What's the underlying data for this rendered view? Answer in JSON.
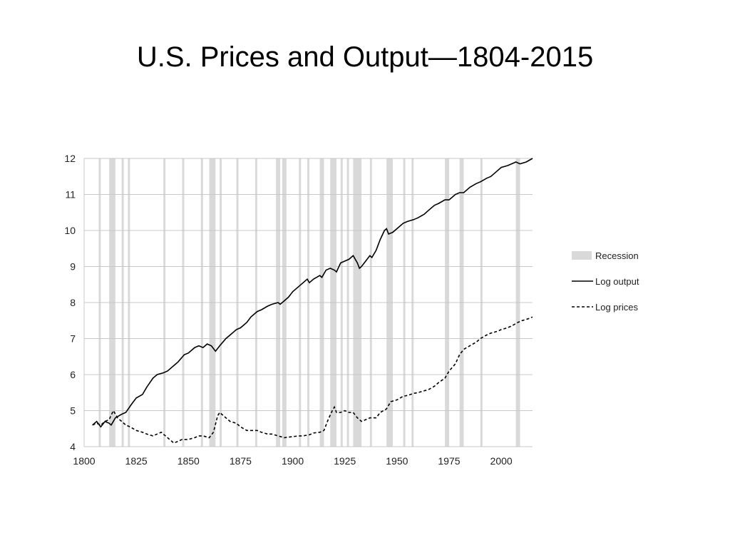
{
  "chart_data": {
    "type": "line",
    "title": "U.S. Prices and Output—1804-2015",
    "xlabel": "",
    "ylabel": "",
    "xlim": [
      1800,
      2015
    ],
    "ylim": [
      4,
      12
    ],
    "x_ticks": [
      1800,
      1825,
      1850,
      1875,
      1900,
      1925,
      1950,
      1975,
      2000
    ],
    "y_ticks": [
      4,
      5,
      6,
      7,
      8,
      9,
      10,
      11,
      12
    ],
    "grid": true,
    "legend_position": "right",
    "legend": [
      "Recession",
      "Log output",
      "Log prices"
    ],
    "colors": {
      "recession": "#d9d9d9",
      "output": "#000000",
      "prices": "#000000",
      "grid": "#c8c8c8"
    },
    "recessions": [
      [
        1807,
        1808
      ],
      [
        1812,
        1815
      ],
      [
        1818,
        1819
      ],
      [
        1821,
        1822
      ],
      [
        1838,
        1839
      ],
      [
        1847,
        1848
      ],
      [
        1856,
        1857
      ],
      [
        1860,
        1863
      ],
      [
        1865,
        1866
      ],
      [
        1873,
        1874
      ],
      [
        1882,
        1883
      ],
      [
        1892,
        1894
      ],
      [
        1895,
        1897
      ],
      [
        1903,
        1904
      ],
      [
        1907,
        1908
      ],
      [
        1913,
        1915
      ],
      [
        1918,
        1921
      ],
      [
        1923,
        1924
      ],
      [
        1926,
        1927
      ],
      [
        1929,
        1933
      ],
      [
        1937,
        1938
      ],
      [
        1945,
        1948
      ],
      [
        1953,
        1954
      ],
      [
        1957,
        1958
      ],
      [
        1973,
        1975
      ],
      [
        1980,
        1982
      ],
      [
        1990,
        1991
      ],
      [
        2007,
        2009
      ]
    ],
    "series": [
      {
        "name": "Log output",
        "style": "solid",
        "points": [
          [
            1804,
            4.6
          ],
          [
            1806,
            4.7
          ],
          [
            1808,
            4.55
          ],
          [
            1810,
            4.7
          ],
          [
            1812,
            4.65
          ],
          [
            1813,
            4.6
          ],
          [
            1815,
            4.8
          ],
          [
            1818,
            4.9
          ],
          [
            1820,
            4.95
          ],
          [
            1823,
            5.2
          ],
          [
            1825,
            5.35
          ],
          [
            1828,
            5.45
          ],
          [
            1830,
            5.65
          ],
          [
            1833,
            5.9
          ],
          [
            1835,
            6.0
          ],
          [
            1838,
            6.05
          ],
          [
            1840,
            6.1
          ],
          [
            1843,
            6.25
          ],
          [
            1845,
            6.35
          ],
          [
            1848,
            6.55
          ],
          [
            1850,
            6.6
          ],
          [
            1853,
            6.75
          ],
          [
            1855,
            6.8
          ],
          [
            1857,
            6.75
          ],
          [
            1859,
            6.85
          ],
          [
            1861,
            6.8
          ],
          [
            1863,
            6.65
          ],
          [
            1865,
            6.8
          ],
          [
            1868,
            7.0
          ],
          [
            1870,
            7.1
          ],
          [
            1873,
            7.25
          ],
          [
            1875,
            7.3
          ],
          [
            1878,
            7.45
          ],
          [
            1880,
            7.6
          ],
          [
            1883,
            7.75
          ],
          [
            1885,
            7.8
          ],
          [
            1888,
            7.9
          ],
          [
            1890,
            7.95
          ],
          [
            1893,
            8.0
          ],
          [
            1894,
            7.95
          ],
          [
            1896,
            8.05
          ],
          [
            1898,
            8.15
          ],
          [
            1900,
            8.3
          ],
          [
            1903,
            8.45
          ],
          [
            1905,
            8.55
          ],
          [
            1907,
            8.65
          ],
          [
            1908,
            8.55
          ],
          [
            1910,
            8.65
          ],
          [
            1913,
            8.75
          ],
          [
            1914,
            8.7
          ],
          [
            1916,
            8.9
          ],
          [
            1918,
            8.95
          ],
          [
            1920,
            8.9
          ],
          [
            1921,
            8.85
          ],
          [
            1923,
            9.1
          ],
          [
            1925,
            9.15
          ],
          [
            1927,
            9.2
          ],
          [
            1929,
            9.3
          ],
          [
            1931,
            9.1
          ],
          [
            1932,
            8.95
          ],
          [
            1933,
            9.0
          ],
          [
            1935,
            9.15
          ],
          [
            1937,
            9.3
          ],
          [
            1938,
            9.25
          ],
          [
            1940,
            9.45
          ],
          [
            1942,
            9.75
          ],
          [
            1944,
            10.0
          ],
          [
            1945,
            10.05
          ],
          [
            1946,
            9.9
          ],
          [
            1948,
            9.95
          ],
          [
            1950,
            10.05
          ],
          [
            1953,
            10.2
          ],
          [
            1955,
            10.25
          ],
          [
            1958,
            10.3
          ],
          [
            1960,
            10.35
          ],
          [
            1963,
            10.45
          ],
          [
            1965,
            10.55
          ],
          [
            1968,
            10.7
          ],
          [
            1970,
            10.75
          ],
          [
            1973,
            10.85
          ],
          [
            1975,
            10.85
          ],
          [
            1978,
            11.0
          ],
          [
            1980,
            11.05
          ],
          [
            1982,
            11.05
          ],
          [
            1985,
            11.2
          ],
          [
            1988,
            11.3
          ],
          [
            1990,
            11.35
          ],
          [
            1993,
            11.45
          ],
          [
            1995,
            11.5
          ],
          [
            1998,
            11.65
          ],
          [
            2000,
            11.75
          ],
          [
            2003,
            11.8
          ],
          [
            2005,
            11.85
          ],
          [
            2007,
            11.9
          ],
          [
            2009,
            11.85
          ],
          [
            2012,
            11.9
          ],
          [
            2015,
            12.0
          ]
        ]
      },
      {
        "name": "Log prices",
        "style": "dashed",
        "points": [
          [
            1804,
            4.6
          ],
          [
            1806,
            4.65
          ],
          [
            1808,
            4.6
          ],
          [
            1810,
            4.7
          ],
          [
            1812,
            4.75
          ],
          [
            1814,
            5.0
          ],
          [
            1816,
            4.8
          ],
          [
            1818,
            4.7
          ],
          [
            1820,
            4.6
          ],
          [
            1822,
            4.55
          ],
          [
            1825,
            4.45
          ],
          [
            1828,
            4.4
          ],
          [
            1830,
            4.35
          ],
          [
            1833,
            4.3
          ],
          [
            1835,
            4.35
          ],
          [
            1837,
            4.4
          ],
          [
            1840,
            4.25
          ],
          [
            1842,
            4.15
          ],
          [
            1843,
            4.1
          ],
          [
            1845,
            4.15
          ],
          [
            1847,
            4.2
          ],
          [
            1850,
            4.2
          ],
          [
            1853,
            4.25
          ],
          [
            1855,
            4.3
          ],
          [
            1857,
            4.3
          ],
          [
            1860,
            4.25
          ],
          [
            1862,
            4.4
          ],
          [
            1864,
            4.85
          ],
          [
            1865,
            4.95
          ],
          [
            1867,
            4.85
          ],
          [
            1870,
            4.7
          ],
          [
            1873,
            4.65
          ],
          [
            1875,
            4.55
          ],
          [
            1878,
            4.45
          ],
          [
            1880,
            4.45
          ],
          [
            1883,
            4.45
          ],
          [
            1885,
            4.4
          ],
          [
            1888,
            4.35
          ],
          [
            1890,
            4.35
          ],
          [
            1893,
            4.3
          ],
          [
            1896,
            4.25
          ],
          [
            1900,
            4.28
          ],
          [
            1903,
            4.3
          ],
          [
            1905,
            4.3
          ],
          [
            1908,
            4.33
          ],
          [
            1910,
            4.38
          ],
          [
            1913,
            4.4
          ],
          [
            1915,
            4.45
          ],
          [
            1917,
            4.75
          ],
          [
            1919,
            5.0
          ],
          [
            1920,
            5.1
          ],
          [
            1921,
            4.95
          ],
          [
            1923,
            4.95
          ],
          [
            1925,
            5.0
          ],
          [
            1927,
            4.95
          ],
          [
            1929,
            4.95
          ],
          [
            1931,
            4.8
          ],
          [
            1933,
            4.7
          ],
          [
            1935,
            4.75
          ],
          [
            1937,
            4.8
          ],
          [
            1940,
            4.8
          ],
          [
            1942,
            4.95
          ],
          [
            1945,
            5.05
          ],
          [
            1947,
            5.25
          ],
          [
            1950,
            5.3
          ],
          [
            1953,
            5.4
          ],
          [
            1955,
            5.42
          ],
          [
            1958,
            5.48
          ],
          [
            1960,
            5.5
          ],
          [
            1963,
            5.55
          ],
          [
            1965,
            5.58
          ],
          [
            1968,
            5.68
          ],
          [
            1970,
            5.78
          ],
          [
            1973,
            5.9
          ],
          [
            1975,
            6.1
          ],
          [
            1978,
            6.3
          ],
          [
            1980,
            6.55
          ],
          [
            1982,
            6.7
          ],
          [
            1985,
            6.8
          ],
          [
            1988,
            6.9
          ],
          [
            1990,
            7.0
          ],
          [
            1993,
            7.1
          ],
          [
            1995,
            7.15
          ],
          [
            1998,
            7.2
          ],
          [
            2000,
            7.25
          ],
          [
            2003,
            7.3
          ],
          [
            2005,
            7.35
          ],
          [
            2008,
            7.45
          ],
          [
            2010,
            7.5
          ],
          [
            2013,
            7.55
          ],
          [
            2015,
            7.6
          ]
        ]
      }
    ]
  }
}
